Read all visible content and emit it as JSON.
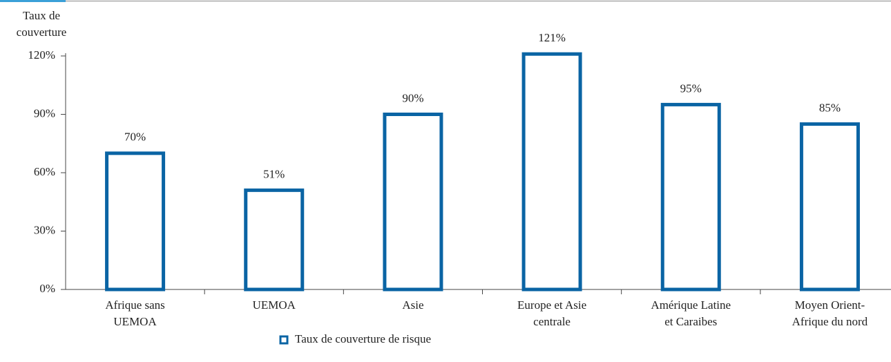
{
  "chart_data": {
    "type": "bar",
    "y_label": "Taux de\ncouverture",
    "categories": [
      "Afrique sans\nUEMOA",
      "UEMOA",
      "Asie",
      "Europe et Asie\ncentrale",
      "Amérique Latine\net Caraibes",
      "Moyen Orient-\nAfrique du nord"
    ],
    "series": [
      {
        "name": "Taux de couverture de risque",
        "color": "#0a64a4",
        "values": [
          70,
          51,
          90,
          121,
          95,
          85
        ],
        "value_labels": [
          "70%",
          "51%",
          "90%",
          "121%",
          "95%",
          "85%"
        ]
      }
    ],
    "ylim": [
      0,
      120
    ],
    "yticks": [
      {
        "value": 0,
        "label": "0%"
      },
      {
        "value": 30,
        "label": "30%"
      },
      {
        "value": 60,
        "label": "60%"
      },
      {
        "value": 90,
        "label": "90%"
      },
      {
        "value": 120,
        "label": "120%"
      }
    ],
    "legend": "bottom"
  }
}
